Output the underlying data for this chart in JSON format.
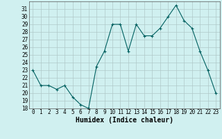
{
  "xlabel": "Humidex (Indice chaleur)",
  "x": [
    0,
    1,
    2,
    3,
    4,
    5,
    6,
    7,
    8,
    9,
    10,
    11,
    12,
    13,
    14,
    15,
    16,
    17,
    18,
    19,
    20,
    21,
    22,
    23
  ],
  "y": [
    23,
    21,
    21,
    20.5,
    21,
    19.5,
    18.5,
    18,
    23.5,
    25.5,
    29,
    29,
    25.5,
    29,
    27.5,
    27.5,
    28.5,
    30,
    31.5,
    29.5,
    28.5,
    25.5,
    23,
    20
  ],
  "ylim": [
    18,
    32
  ],
  "xlim": [
    -0.5,
    23.5
  ],
  "yticks": [
    18,
    19,
    20,
    21,
    22,
    23,
    24,
    25,
    26,
    27,
    28,
    29,
    30,
    31
  ],
  "xticks": [
    0,
    1,
    2,
    3,
    4,
    5,
    6,
    7,
    8,
    9,
    10,
    11,
    12,
    13,
    14,
    15,
    16,
    17,
    18,
    19,
    20,
    21,
    22,
    23
  ],
  "line_color": "#006060",
  "marker": "+",
  "bg_color": "#d0f0f0",
  "grid_color": "#b0c8c8",
  "font_size_ticks": 5.5,
  "font_size_xlabel": 7
}
